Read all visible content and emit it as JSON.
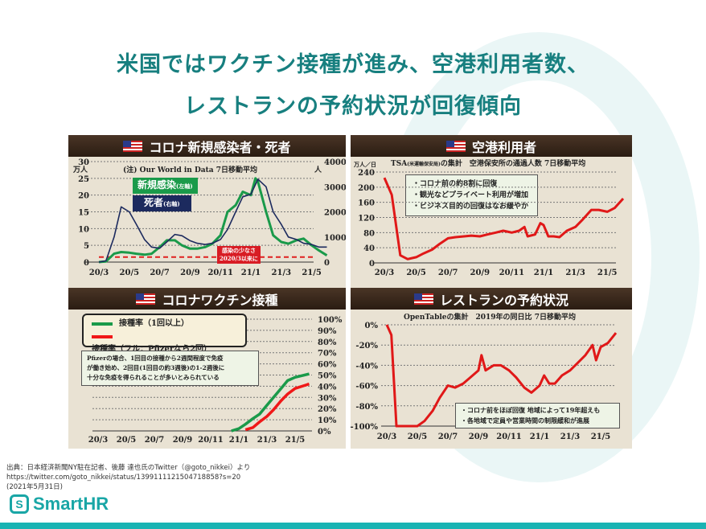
{
  "slide": {
    "title_line1": "米国ではワクチン接種が進み、空港利用者数、",
    "title_line2": "レストランの予約状況が回復傾向",
    "source_line1": "出典：日本経済新聞NY駐在記者、後藤 達也氏のTwitter（@goto_nikkei）より",
    "source_line2": "https://twitter.com/goto_nikkei/status/1399111121504718858?s=20",
    "source_line3": "(2021年5月31日)",
    "logo_text": "SmartHR",
    "logo_icon": "S",
    "accent": "#19a6a6"
  },
  "chart_data": [
    {
      "type": "line",
      "title": "コロナ新規感染者・死者",
      "subtitle": "(注) Our World in Data  7日移動平均",
      "ylabel_left": "万人",
      "ylabel_right": "人",
      "ylim_left": [
        0,
        30
      ],
      "ylim_right": [
        0,
        4000
      ],
      "yticks_left": [
        "0",
        "5",
        "10",
        "15",
        "20",
        "25",
        "30"
      ],
      "yticks_right": [
        "0",
        "1000",
        "2000",
        "3000",
        "4000"
      ],
      "xticks": [
        "20/3",
        "20/5",
        "20/7",
        "20/9",
        "20/11",
        "21/1",
        "21/3",
        "21/5"
      ],
      "grid": true,
      "series": [
        {
          "name": "新規感染",
          "axis_note": "(左軸)",
          "axis": "left",
          "color": "#1a9a4a",
          "x": [
            "2020-03-01",
            "2020-03-15",
            "2020-04-01",
            "2020-04-15",
            "2020-05-01",
            "2020-05-15",
            "2020-06-01",
            "2020-06-15",
            "2020-07-01",
            "2020-07-15",
            "2020-08-01",
            "2020-08-15",
            "2020-09-01",
            "2020-09-15",
            "2020-10-01",
            "2020-10-15",
            "2020-11-01",
            "2020-11-15",
            "2020-12-01",
            "2020-12-15",
            "2021-01-01",
            "2021-01-10",
            "2021-01-15",
            "2021-02-01",
            "2021-02-15",
            "2021-03-01",
            "2021-03-15",
            "2021-04-01",
            "2021-04-15",
            "2021-05-01",
            "2021-05-15",
            "2021-05-31"
          ],
          "y": [
            0,
            0.2,
            2.5,
            3,
            2.8,
            2.5,
            2.2,
            2.5,
            4.5,
            6.5,
            6.5,
            5,
            4,
            4,
            4.5,
            5.5,
            8,
            15,
            17,
            21,
            20,
            25,
            24,
            15,
            8,
            6,
            5.5,
            6.5,
            7,
            5,
            3.5,
            2
          ]
        },
        {
          "name": "死者",
          "axis_note": "(右軸)",
          "axis": "right",
          "color": "#1c2a5e",
          "x": [
            "2020-03-01",
            "2020-03-15",
            "2020-04-01",
            "2020-04-15",
            "2020-05-01",
            "2020-05-15",
            "2020-06-01",
            "2020-06-15",
            "2020-07-01",
            "2020-07-15",
            "2020-08-01",
            "2020-08-15",
            "2020-09-01",
            "2020-09-15",
            "2020-10-01",
            "2020-10-15",
            "2020-11-01",
            "2020-11-15",
            "2020-12-01",
            "2020-12-15",
            "2021-01-01",
            "2021-01-15",
            "2021-02-01",
            "2021-02-15",
            "2021-03-01",
            "2021-03-15",
            "2021-04-01",
            "2021-04-15",
            "2021-05-01",
            "2021-05-15",
            "2021-05-31"
          ],
          "y": [
            0,
            50,
            1000,
            2200,
            2000,
            1500,
            900,
            600,
            550,
            800,
            1100,
            1050,
            850,
            750,
            700,
            750,
            900,
            1300,
            2000,
            2600,
            2700,
            3300,
            3000,
            2000,
            1500,
            1000,
            900,
            750,
            700,
            600,
            600
          ]
        }
      ],
      "reference_line": {
        "value": 1.5,
        "axis": "left",
        "color": "#e02020",
        "label_line1": "感染の少なさ",
        "label_line2": "2020/3以来に"
      }
    },
    {
      "type": "line",
      "title": "空港利用者",
      "ylabel": "万人／日",
      "subtitle_main": "TSA",
      "subtitle_small": "(米運輸保安局)",
      "subtitle_rest": "の集計　空港保安所の通過人数 7日移動平均",
      "ylim": [
        0,
        240
      ],
      "yticks": [
        "0",
        "40",
        "80",
        "120",
        "160",
        "200",
        "240"
      ],
      "xticks": [
        "20/3",
        "20/5",
        "20/7",
        "20/9",
        "20/11",
        "21/1",
        "21/3",
        "21/5"
      ],
      "grid": true,
      "notes": [
        "・コロナ前の約8割に回復",
        "・観光などプライベート利用が増加",
        "・ビジネス目的の回復はなお緩やか"
      ],
      "series": [
        {
          "color": "#e01818",
          "x": [
            "2020-03-01",
            "2020-03-15",
            "2020-04-01",
            "2020-04-15",
            "2020-05-01",
            "2020-05-15",
            "2020-06-01",
            "2020-06-15",
            "2020-07-01",
            "2020-07-15",
            "2020-08-01",
            "2020-08-15",
            "2020-09-01",
            "2020-09-15",
            "2020-10-01",
            "2020-10-15",
            "2020-11-01",
            "2020-11-15",
            "2020-11-25",
            "2020-12-01",
            "2020-12-15",
            "2020-12-25",
            "2021-01-01",
            "2021-01-10",
            "2021-01-20",
            "2021-02-01",
            "2021-02-15",
            "2021-03-01",
            "2021-03-15",
            "2021-04-01",
            "2021-04-15",
            "2021-05-01",
            "2021-05-15",
            "2021-05-31"
          ],
          "y": [
            225,
            180,
            20,
            10,
            15,
            25,
            35,
            50,
            65,
            68,
            70,
            72,
            70,
            75,
            80,
            85,
            80,
            85,
            95,
            70,
            75,
            105,
            100,
            70,
            70,
            68,
            85,
            95,
            115,
            140,
            140,
            135,
            145,
            170
          ]
        }
      ]
    },
    {
      "type": "line",
      "title": "コロナワクチン接種",
      "ylim": [
        0,
        100
      ],
      "yticks": [
        "0%",
        "10%",
        "20%",
        "30%",
        "40%",
        "50%",
        "60%",
        "70%",
        "80%",
        "90%",
        "100%"
      ],
      "xticks": [
        "20/3",
        "20/5",
        "20/7",
        "20/9",
        "20/11",
        "21/1",
        "21/3",
        "21/5"
      ],
      "grid": true,
      "note": [
        "Pfizerの場合、1回目の接種から2週間程度で免疫",
        "が働き始め、2回目(1回目の約3週後)の1-2週後に",
        "十分な免疫を得られることが多いとみられている"
      ],
      "series": [
        {
          "name": "接種率（1回以上）",
          "color": "#1a9a4a",
          "x": [
            "2020-12-15",
            "2021-01-01",
            "2021-01-15",
            "2021-02-01",
            "2021-02-15",
            "2021-03-01",
            "2021-03-15",
            "2021-04-01",
            "2021-04-15",
            "2021-05-01",
            "2021-05-31"
          ],
          "y": [
            0,
            2,
            6,
            11,
            15,
            23,
            30,
            38,
            45,
            48,
            51
          ]
        },
        {
          "name": "接種率（フル：Pfizerなら2回）",
          "color": "#f01818",
          "x": [
            "2021-01-15",
            "2021-02-01",
            "2021-02-15",
            "2021-03-01",
            "2021-03-15",
            "2021-04-01",
            "2021-04-15",
            "2021-05-01",
            "2021-05-31"
          ],
          "y": [
            1,
            3,
            8,
            13,
            19,
            27,
            33,
            38,
            42
          ]
        }
      ]
    },
    {
      "type": "line",
      "title": "レストランの予約状況",
      "subtitle": "OpenTableの集計　2019年の同日比  7日移動平均",
      "ylim": [
        -100,
        0
      ],
      "yticks": [
        "-100%",
        "-80%",
        "-60%",
        "-40%",
        "-20%",
        "0%"
      ],
      "xticks": [
        "20/3",
        "20/5",
        "20/7",
        "20/9",
        "20/11",
        "21/1",
        "21/3",
        "21/5"
      ],
      "grid": true,
      "notes": [
        "・コロナ前をほぼ回復  地域によって19年超えも",
        "・各地域で定員や営業時間の制限緩和が進展"
      ],
      "series": [
        {
          "color": "#e01818",
          "x": [
            "2020-03-01",
            "2020-03-10",
            "2020-03-20",
            "2020-04-01",
            "2020-05-01",
            "2020-05-15",
            "2020-06-01",
            "2020-06-15",
            "2020-07-01",
            "2020-07-15",
            "2020-08-01",
            "2020-08-15",
            "2020-09-01",
            "2020-09-07",
            "2020-09-15",
            "2020-10-01",
            "2020-10-15",
            "2020-11-01",
            "2020-11-15",
            "2020-12-01",
            "2020-12-15",
            "2021-01-01",
            "2021-01-10",
            "2021-01-20",
            "2021-02-01",
            "2021-02-15",
            "2021-03-01",
            "2021-03-15",
            "2021-04-01",
            "2021-04-15",
            "2021-04-22",
            "2021-05-01",
            "2021-05-15",
            "2021-05-31"
          ],
          "y": [
            0,
            -10,
            -100,
            -100,
            -100,
            -95,
            -85,
            -72,
            -60,
            -62,
            -58,
            -52,
            -45,
            -30,
            -45,
            -40,
            -40,
            -45,
            -52,
            -62,
            -67,
            -60,
            -50,
            -58,
            -58,
            -50,
            -45,
            -38,
            -30,
            -20,
            -35,
            -22,
            -18,
            -8
          ]
        }
      ]
    }
  ]
}
